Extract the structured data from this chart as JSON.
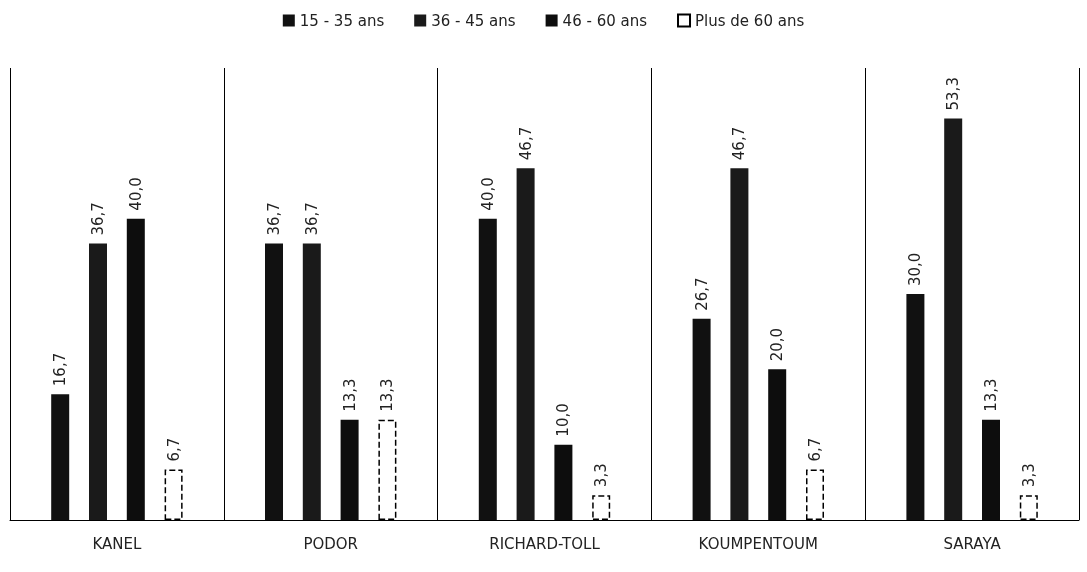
{
  "chart_data": {
    "type": "bar",
    "categories": [
      "KANEL",
      "PODOR",
      "RICHARD-TOLL",
      "KOUMPENTOUM",
      "SARAYA"
    ],
    "series": [
      {
        "name": "15 - 35 ans",
        "color": "#111111",
        "values": [
          16.7,
          36.7,
          40.0,
          26.7,
          30.0
        ],
        "value_labels": [
          "16,7",
          "36,7",
          "40,0",
          "26,7",
          "30,0"
        ]
      },
      {
        "name": "36 - 45 ans",
        "color": "#1a1a1a",
        "values": [
          36.7,
          36.7,
          46.7,
          46.7,
          53.3
        ],
        "value_labels": [
          "36,7",
          "36,7",
          "46,7",
          "46,7",
          "53,3"
        ]
      },
      {
        "name": "46 - 60 ans",
        "color": "#0d0d0d",
        "values": [
          40.0,
          13.3,
          10.0,
          20.0,
          13.3
        ],
        "value_labels": [
          "40,0",
          "13,3",
          "10,0",
          "20,0",
          "13,3"
        ]
      },
      {
        "name": "Plus de 60 ans",
        "color": "#ffffff",
        "values": [
          6.7,
          13.3,
          3.3,
          6.7,
          3.3
        ],
        "value_labels": [
          "6,7",
          "13,3",
          "3,3",
          "6,7",
          "3,3"
        ]
      }
    ],
    "grid": "x",
    "legend": "top"
  }
}
